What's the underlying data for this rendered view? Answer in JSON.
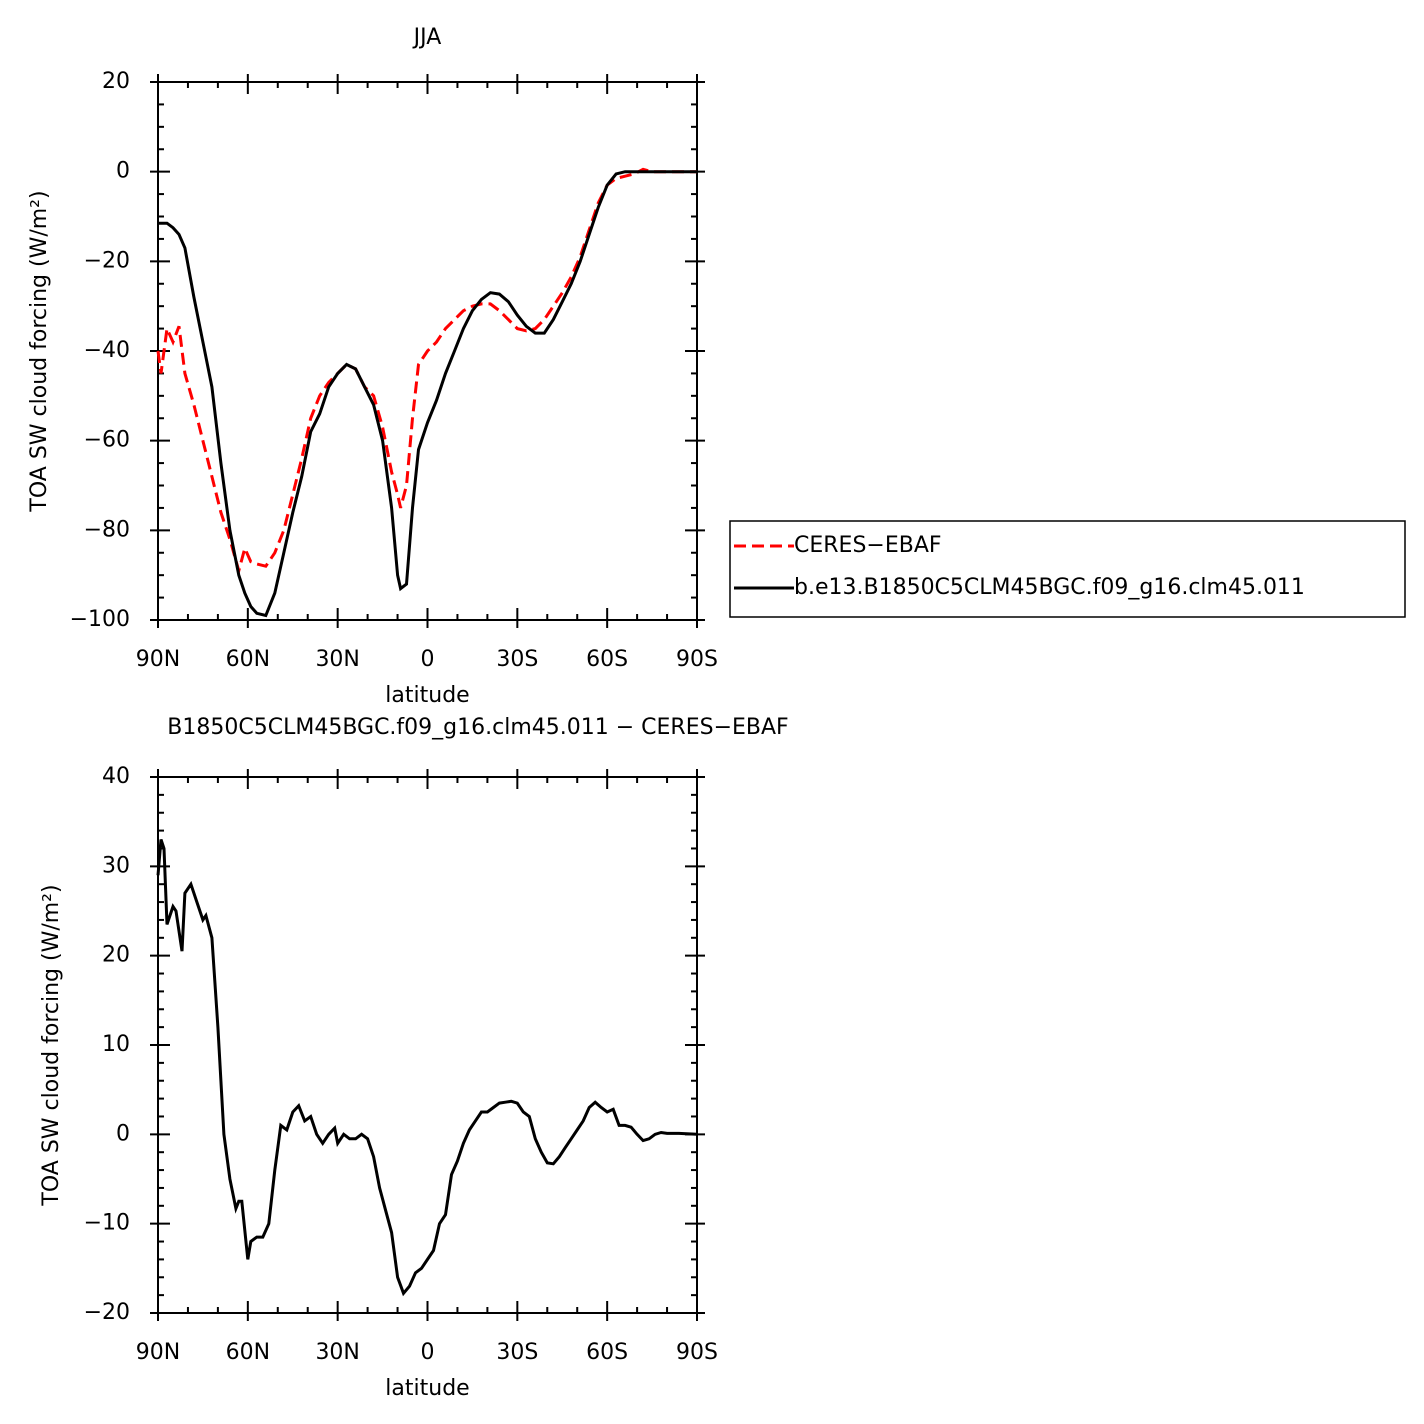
{
  "chart_data": [
    {
      "type": "line",
      "title": "JJA",
      "xlabel": "latitude",
      "ylabel": "TOA SW cloud forcing (W/m²)",
      "x": [
        90,
        89,
        87,
        85,
        83,
        81,
        78,
        75,
        72,
        69,
        66,
        63,
        61,
        59,
        57,
        54,
        51,
        48,
        45,
        42,
        39,
        36,
        33,
        30,
        27,
        24,
        21,
        18,
        15,
        12,
        10,
        9,
        7,
        5,
        3,
        0,
        -3,
        -6,
        -9,
        -12,
        -15,
        -18,
        -21,
        -24,
        -27,
        -30,
        -33,
        -36,
        -39,
        -42,
        -45,
        -48,
        -51,
        -54,
        -57,
        -60,
        -63,
        -66,
        -69,
        -72,
        -75,
        -78,
        -81,
        -84,
        -87,
        -90
      ],
      "series": [
        {
          "name": "CERES−EBAF",
          "color": "#ff0000",
          "dash": true,
          "values": [
            -40,
            -45,
            -35,
            -38,
            -34.5,
            -45,
            -52,
            -60,
            -68,
            -76,
            -82,
            -89,
            -84,
            -87,
            -87.5,
            -88,
            -85,
            -80,
            -72,
            -64,
            -55,
            -50,
            -47,
            -45,
            -43,
            -44,
            -48,
            -50,
            -57,
            -67,
            -72,
            -75,
            -70,
            -55,
            -43,
            -40,
            -38,
            -35,
            -33,
            -31,
            -30,
            -29.5,
            -29.5,
            -31,
            -33,
            -35,
            -35.5,
            -35,
            -33,
            -30,
            -27,
            -23.5,
            -19,
            -13,
            -7,
            -3,
            -1.5,
            -1,
            -0.5,
            0.5,
            0,
            0,
            0,
            0,
            0,
            0
          ]
        },
        {
          "name": "b.e13.B1850C5CLM45BGC.f09_g16.clm45.011",
          "color": "#000000",
          "dash": false,
          "values": [
            -11.5,
            -11.5,
            -11.5,
            -12.5,
            -14,
            -17,
            -28,
            -38,
            -48,
            -65,
            -80,
            -90,
            -94,
            -97,
            -98.5,
            -99,
            -94,
            -85,
            -76,
            -68,
            -58,
            -54,
            -48,
            -45,
            -43,
            -44,
            -48,
            -52,
            -60,
            -75,
            -90,
            -93,
            -92,
            -75,
            -62,
            -56,
            -51,
            -45,
            -40,
            -35,
            -31,
            -28.5,
            -27,
            -27.3,
            -29,
            -32,
            -34.5,
            -36,
            -36,
            -33,
            -29,
            -25,
            -20,
            -14,
            -8,
            -3,
            -0.5,
            0,
            0,
            0,
            0,
            0,
            0,
            0,
            0,
            0
          ]
        }
      ],
      "xlim": [
        90,
        -90
      ],
      "xticks": [
        {
          "value": 90,
          "label": "90N"
        },
        {
          "value": 60,
          "label": "60N"
        },
        {
          "value": 30,
          "label": "30N"
        },
        0,
        {
          "value": -30,
          "label": "30S"
        },
        {
          "value": -60,
          "label": "60S"
        },
        {
          "value": -90,
          "label": "90S"
        }
      ],
      "ylim": [
        -100,
        20
      ],
      "yticks": [
        {
          "value": -100,
          "label": "−100"
        },
        {
          "value": -80,
          "label": "−80"
        },
        {
          "value": -60,
          "label": "−60"
        },
        {
          "value": -40,
          "label": "−40"
        },
        {
          "value": -20,
          "label": "−20"
        },
        0,
        20
      ],
      "legend": "right"
    },
    {
      "type": "line",
      "title": "B1850C5CLM45BGC.f09_g16.clm45.011 − CERES−EBAF",
      "xlabel": "latitude",
      "ylabel": "TOA SW cloud forcing (W/m²)",
      "x": [
        90,
        89,
        88,
        87,
        85,
        84,
        82,
        81,
        79,
        77,
        75,
        74,
        72,
        70,
        68,
        66,
        64,
        63,
        62,
        60,
        59,
        57,
        55,
        53,
        51,
        49,
        47,
        45,
        43,
        41,
        39,
        37,
        35,
        33,
        31,
        30,
        28,
        26,
        24,
        22,
        20,
        18,
        16,
        14,
        12,
        10,
        8,
        6,
        4,
        2,
        0,
        -2,
        -4,
        -6,
        -8,
        -10,
        -12,
        -14,
        -16,
        -18,
        -20,
        -22,
        -24,
        -26,
        -28,
        -30,
        -32,
        -34,
        -36,
        -38,
        -40,
        -42,
        -44,
        -46,
        -48,
        -50,
        -52,
        -54,
        -56,
        -58,
        -60,
        -62,
        -64,
        -66,
        -68,
        -70,
        -72,
        -74,
        -76,
        -78,
        -80,
        -84,
        -90
      ],
      "series": [
        {
          "color": "#000000",
          "dash": false,
          "values": [
            29,
            33,
            32,
            23.5,
            25.5,
            25,
            20.5,
            27,
            28,
            26,
            24,
            24.5,
            22,
            12,
            0,
            -5,
            -8.3,
            -7.5,
            -7.5,
            -14,
            -12,
            -11.5,
            -11.5,
            -10,
            -4,
            1,
            0.5,
            2.5,
            3.2,
            1.5,
            2,
            0,
            -1,
            0,
            0.7,
            -1,
            0,
            -0.5,
            -0.5,
            0,
            -0.5,
            -2.5,
            -6,
            -8.5,
            -11,
            -16,
            -17.8,
            -17,
            -15.5,
            -15,
            -14,
            -13,
            -10,
            -9,
            -4.5,
            -3,
            -1,
            0.5,
            1.5,
            2.5,
            2.5,
            3,
            3.5,
            3.6,
            3.7,
            3.5,
            2.5,
            2,
            -0.5,
            -2,
            -3.2,
            -3.3,
            -2.5,
            -1.5,
            -0.5,
            0.5,
            1.5,
            3,
            3.6,
            3,
            2.5,
            2.8,
            1,
            1,
            0.8,
            0,
            -0.7,
            -0.5,
            0,
            0.2,
            0.1,
            0.1,
            0
          ]
        }
      ],
      "xlim": [
        90,
        -90
      ],
      "xticks": [
        {
          "value": 90,
          "label": "90N"
        },
        {
          "value": 60,
          "label": "60N"
        },
        {
          "value": 30,
          "label": "30N"
        },
        0,
        {
          "value": -30,
          "label": "30S"
        },
        {
          "value": -60,
          "label": "60S"
        },
        {
          "value": -90,
          "label": "90S"
        }
      ],
      "ylim": [
        -20,
        40
      ],
      "yticks": [
        {
          "value": -20,
          "label": "−20"
        },
        {
          "value": -10,
          "label": "−10"
        },
        0,
        10,
        20,
        30,
        40
      ]
    }
  ]
}
